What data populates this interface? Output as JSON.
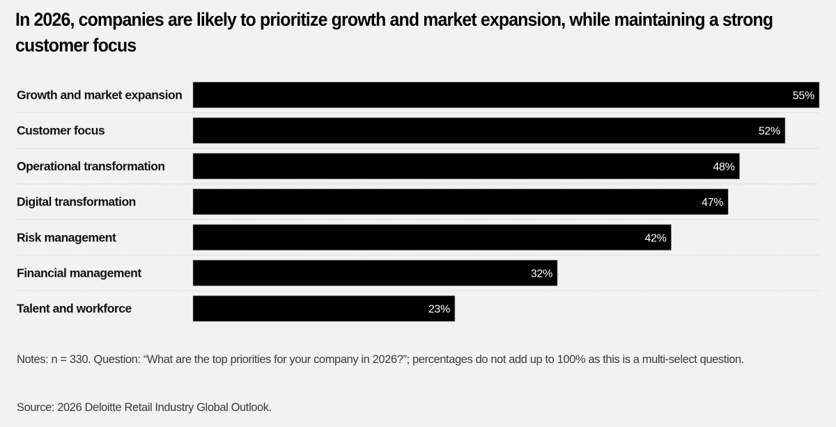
{
  "chart_data": {
    "type": "bar",
    "orientation": "horizontal",
    "title": "In 2026, companies are likely to prioritize growth and market expansion, while maintaining a strong customer focus",
    "xlabel": "",
    "ylabel": "",
    "xlim": [
      0,
      55
    ],
    "grid": false,
    "value_suffix": "%",
    "categories": [
      "Growth and market expansion",
      "Customer focus",
      "Operational transformation",
      "Digital transformation",
      "Risk management",
      "Financial management",
      "Talent and workforce"
    ],
    "values": [
      55,
      52,
      48,
      47,
      42,
      32,
      23
    ],
    "value_labels": [
      "55%",
      "52%",
      "48%",
      "47%",
      "42%",
      "32%",
      "23%"
    ],
    "bar_color": "#000000",
    "label_color": "#ffffff"
  },
  "footer": {
    "notes": "Notes: n = 330. Question: “What are the top priorities for your company in 2026?”; percentages do not add up to 100% as this is a multi-select question.",
    "source": "Source: 2026 Deloitte Retail Industry Global Outlook."
  }
}
